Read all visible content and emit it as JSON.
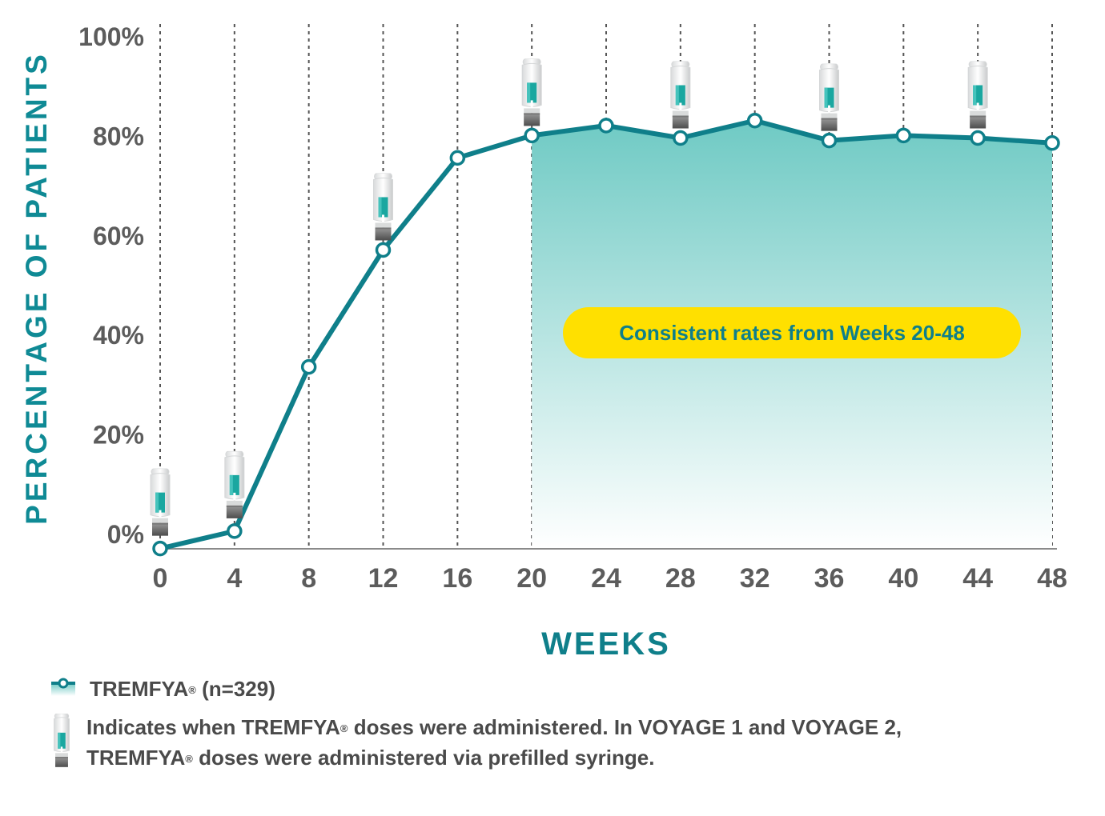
{
  "chart_data": {
    "type": "line",
    "x": [
      0,
      4,
      8,
      12,
      16,
      20,
      24,
      28,
      32,
      36,
      40,
      44,
      48
    ],
    "series": [
      {
        "name": "TREMFYA® (n=329)",
        "values": [
          -3,
          0.5,
          33.5,
          57,
          75.5,
          80,
          82,
          79.5,
          83,
          79,
          80,
          79.5,
          78.5
        ]
      }
    ],
    "ylim": [
      0,
      100
    ],
    "xlim": [
      0,
      48
    ],
    "yticks": [
      "0%",
      "20%",
      "40%",
      "60%",
      "80%",
      "100%"
    ],
    "yticks_values": [
      0,
      20,
      40,
      60,
      80,
      100
    ],
    "xticks": [
      "0",
      "4",
      "8",
      "12",
      "16",
      "20",
      "24",
      "28",
      "32",
      "36",
      "40",
      "44",
      "48"
    ],
    "xlabel": "WEEKS",
    "ylabel": "PERCENTAGE OF PATIENTS",
    "dose_weeks": [
      0,
      4,
      12,
      20,
      28,
      36,
      44
    ],
    "shaded_range": [
      20,
      48
    ],
    "annotation": "Consistent rates from Weeks 20-48",
    "grid": "vertical dotted",
    "colors": {
      "line": "#0f7f8a",
      "fill": "#7fd0cb",
      "callout": "#ffe000",
      "axis_label": "#0f8a95"
    }
  },
  "legend": {
    "series_label": "TREMFYA",
    "series_suffix": " (n=329)",
    "reg": "®",
    "dose_note_line1_a": "Indicates when TREMFYA",
    "dose_note_line1_b": " doses were administered. In VOYAGE 1 and VOYAGE 2,",
    "dose_note_line2_a": "TREMFYA",
    "dose_note_line2_b": " doses were administered via prefilled syringe.",
    "series_icon": "line-marker-icon",
    "dose_icon": "syringe-icon"
  }
}
